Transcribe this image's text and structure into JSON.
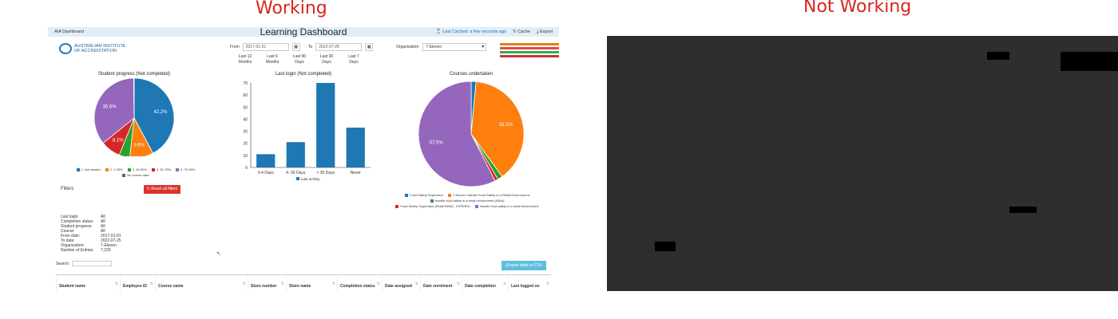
{
  "captions": {
    "working": "Working",
    "not_working": "Not Working"
  },
  "dashboard": {
    "breadcrumb": "AIA Dashboard",
    "title": "Learning Dashboard",
    "last_cached_label": "Last Cached:",
    "last_cached_value": "a few seconds ago",
    "cache_label": "Cache",
    "export_label": "Export",
    "logo_line1": "AUSTRALIAN INSTITUTE",
    "logo_line2": "OF ACCREDITATION",
    "from_label": "From",
    "from_value": "2017-01-01",
    "to_label": "To",
    "to_value": "2022-07-25",
    "ranges": [
      "Last 12 Months",
      "Last 6 Months",
      "Last 90 Days",
      "Last 30 Days",
      "Last 7 Days"
    ],
    "org_label": "Organization",
    "org_value": "7-Eleven",
    "brand_logo": "7-Eleven",
    "filters_heading": "Filters",
    "reset_label": "Reset all filters",
    "summary": [
      {
        "k": "Last login:",
        "v": "All"
      },
      {
        "k": "Completion status:",
        "v": "All"
      },
      {
        "k": "Student progress:",
        "v": "All"
      },
      {
        "k": "Course:",
        "v": "All"
      },
      {
        "k": "From date:",
        "v": "2017-01-01"
      },
      {
        "k": "To date:",
        "v": "2022-07-25"
      },
      {
        "k": "Organization:",
        "v": "7-Eleven"
      },
      {
        "k": "Number of Entries:",
        "v": "7,220"
      }
    ],
    "search_label": "Search:",
    "export_csv_label": "Export table to CSV",
    "columns": [
      "Student name",
      "Employee ID",
      "Course name",
      "Store number",
      "Store name",
      "Completion status",
      "Date assigned",
      "Date enrolment",
      "Date completion",
      "Last logged on"
    ]
  },
  "chart_data": [
    {
      "type": "pie",
      "title": "Student progress (Not completed)",
      "series": [
        {
          "name": "1. Not started",
          "value": 42.2,
          "color": "#1f77b4"
        },
        {
          "name": "2. 1-25%",
          "value": 9.6,
          "color": "#ff7f0e"
        },
        {
          "name": "3. 26-50%",
          "value": 4.3,
          "color": "#2ca02c"
        },
        {
          "name": "4. 51-75%",
          "value": 8.1,
          "color": "#d62728"
        },
        {
          "name": "5. 76-99%",
          "value": 35.6,
          "color": "#9467bd"
        },
        {
          "name": "No course data",
          "value": 0.2,
          "color": "#8c564b"
        }
      ],
      "labels_shown": [
        "42.2%",
        "9.6%",
        "8.1%",
        "35.6%"
      ]
    },
    {
      "type": "bar",
      "title": "Last login (Not completed)",
      "categories": [
        "0-4 Days",
        "4- 30 Days",
        "> 30 Days",
        "Never"
      ],
      "values": [
        11,
        21,
        70,
        33
      ],
      "ylim": [
        0,
        70
      ],
      "yticks": [
        0,
        10,
        20,
        30,
        40,
        50,
        60,
        70
      ],
      "series_name": "Last activity",
      "color": "#1f77b4"
    },
    {
      "type": "pie",
      "title": "Courses undertaken",
      "series": [
        {
          "name": "Food Safety Supervisor",
          "value": 1.5,
          "color": "#1f77b4"
        },
        {
          "name": "7-Eleven: Handle Food Safety in a Retail Environment",
          "value": 38.5,
          "color": "#ff7f0e"
        },
        {
          "name": "Handle food safety in a retail environment (NSW)",
          "value": 1.5,
          "color": "#2ca02c"
        },
        {
          "name": "Food Safety Supervisor (Retail NSW) - EXPIRED",
          "value": 1.0,
          "color": "#d62728"
        },
        {
          "name": "Handle food safety in a retail environment",
          "value": 57.5,
          "color": "#9467bd"
        }
      ],
      "labels_shown": [
        "38.5%",
        "57.5%"
      ]
    }
  ]
}
